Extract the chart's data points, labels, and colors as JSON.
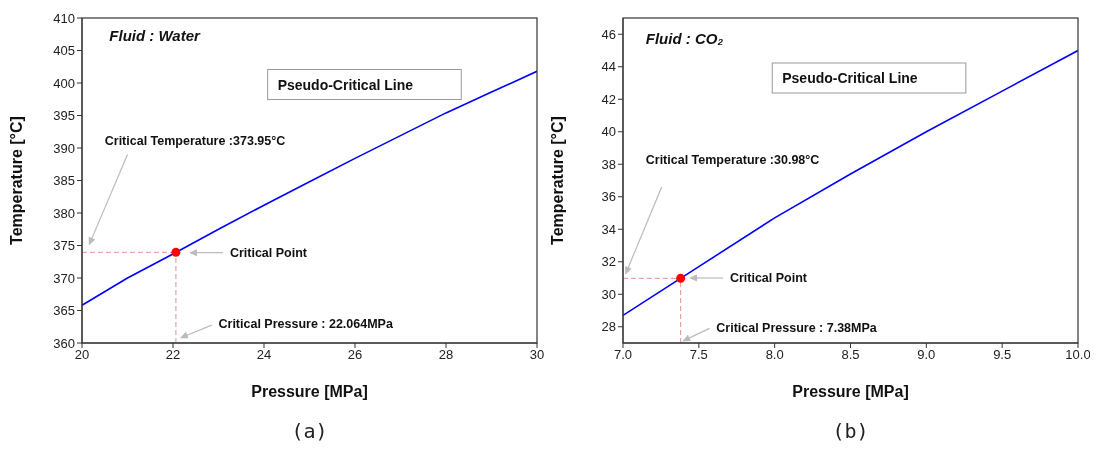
{
  "chart_data": [
    {
      "type": "line",
      "title": "(a)",
      "xlabel": "Pressure [MPa]",
      "ylabel": "Temperature [°C]",
      "xlim": [
        20,
        30
      ],
      "xticks": [
        20,
        22,
        24,
        26,
        28,
        30
      ],
      "ylim": [
        360,
        410
      ],
      "yticks": [
        360,
        365,
        370,
        375,
        380,
        385,
        390,
        395,
        400,
        405,
        410
      ],
      "series": [
        {
          "color": "#0000ff",
          "marker": "none",
          "line_style": "solid",
          "x": [
            20,
            21,
            22,
            23,
            24,
            25,
            26,
            27,
            28,
            29,
            30
          ],
          "values": [
            365.8,
            370,
            373.7,
            377.5,
            381.2,
            384.8,
            388.4,
            391.9,
            395.4,
            398.6,
            401.8
          ]
        },
        {
          "color": "#e89090",
          "marker": "none",
          "line_style": "dashed",
          "x": [
            20,
            22.064
          ],
          "values": [
            373.95,
            373.95
          ]
        },
        {
          "color": "#e89090",
          "marker": "none",
          "line_style": "dashed",
          "x": [
            22.064,
            22.064
          ],
          "values": [
            360,
            373.95
          ]
        },
        {
          "type": "scatter",
          "color": "#ff0000",
          "marker": "circle",
          "x": [
            22.064
          ],
          "values": [
            373.95
          ]
        }
      ],
      "annotations": [
        "Fluid : Water",
        "Pseudo-Critical Line",
        "Critical Temperature :373.95°C",
        "Critical Point",
        "Critical Pressure : 22.064MPa"
      ]
    },
    {
      "type": "line",
      "title": "(b)",
      "xlabel": "Pressure [MPa]",
      "ylabel": "Temperature [°C]",
      "xlim": [
        7,
        10
      ],
      "xticks": [
        {
          "value": 7,
          "label": "7.0"
        },
        7.5,
        {
          "value": 8,
          "label": "8.0"
        },
        8.5,
        {
          "value": 9,
          "label": "9.0"
        },
        9.5,
        {
          "value": 10,
          "label": "10.0"
        }
      ],
      "ylim": [
        27,
        47
      ],
      "yticks": [
        28,
        30,
        32,
        34,
        36,
        38,
        40,
        42,
        44,
        46
      ],
      "series": [
        {
          "color": "#0000ff",
          "marker": "none",
          "line_style": "solid",
          "x": [
            7,
            7.5,
            8,
            8.5,
            9,
            9.5,
            10
          ],
          "values": [
            28.7,
            31.7,
            34.7,
            37.4,
            40,
            42.5,
            45
          ]
        },
        {
          "color": "#e89090",
          "marker": "none",
          "line_style": "dashed",
          "x": [
            7,
            7.38
          ],
          "values": [
            30.98,
            30.98
          ]
        },
        {
          "color": "#e89090",
          "marker": "none",
          "line_style": "dashed",
          "x": [
            7.38,
            7.38
          ],
          "values": [
            27,
            30.98
          ]
        },
        {
          "type": "scatter",
          "color": "#ff0000",
          "marker": "circle",
          "x": [
            7.38
          ],
          "values": [
            30.98
          ]
        }
      ],
      "annotations": [
        "Fluid : CO₂",
        "Pseudo-Critical Line",
        "Critical Temperature :30.98°C",
        "Critical Point",
        "Critical Pressure : 7.38MPa"
      ]
    }
  ]
}
